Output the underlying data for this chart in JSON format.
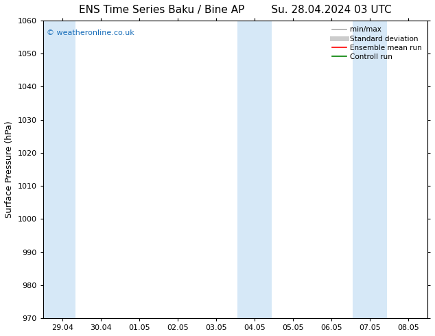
{
  "title": "ENS Time Series Baku / Bine AP        Su. 28.04.2024 03 UTC",
  "ylabel": "Surface Pressure (hPa)",
  "ylim": [
    970,
    1060
  ],
  "yticks": [
    970,
    980,
    990,
    1000,
    1010,
    1020,
    1030,
    1040,
    1050,
    1060
  ],
  "x_labels": [
    "29.04",
    "30.04",
    "01.05",
    "02.05",
    "03.05",
    "04.05",
    "05.05",
    "06.05",
    "07.05",
    "08.05"
  ],
  "x_positions": [
    0,
    1,
    2,
    3,
    4,
    5,
    6,
    7,
    8,
    9
  ],
  "xlim": [
    -0.5,
    9.5
  ],
  "shaded_bands": [
    {
      "x_start": -0.5,
      "x_end": 0.35
    },
    {
      "x_start": 4.55,
      "x_end": 5.45
    },
    {
      "x_start": 7.55,
      "x_end": 8.45
    }
  ],
  "shade_color": "#d6e8f7",
  "watermark_text": "© weatheronline.co.uk",
  "watermark_color": "#1a6fba",
  "background_color": "#ffffff",
  "plot_bg_color": "#ffffff",
  "legend_items": [
    {
      "label": "min/max",
      "color": "#aaaaaa",
      "lw": 1.2,
      "style": "solid"
    },
    {
      "label": "Standard deviation",
      "color": "#cccccc",
      "lw": 5,
      "style": "solid"
    },
    {
      "label": "Ensemble mean run",
      "color": "#ff0000",
      "lw": 1.2,
      "style": "solid"
    },
    {
      "label": "Controll run",
      "color": "#008000",
      "lw": 1.2,
      "style": "solid"
    }
  ],
  "title_fontsize": 11,
  "tick_fontsize": 8,
  "ylabel_fontsize": 9,
  "grid_color": "#dddddd",
  "border_color": "#000000"
}
